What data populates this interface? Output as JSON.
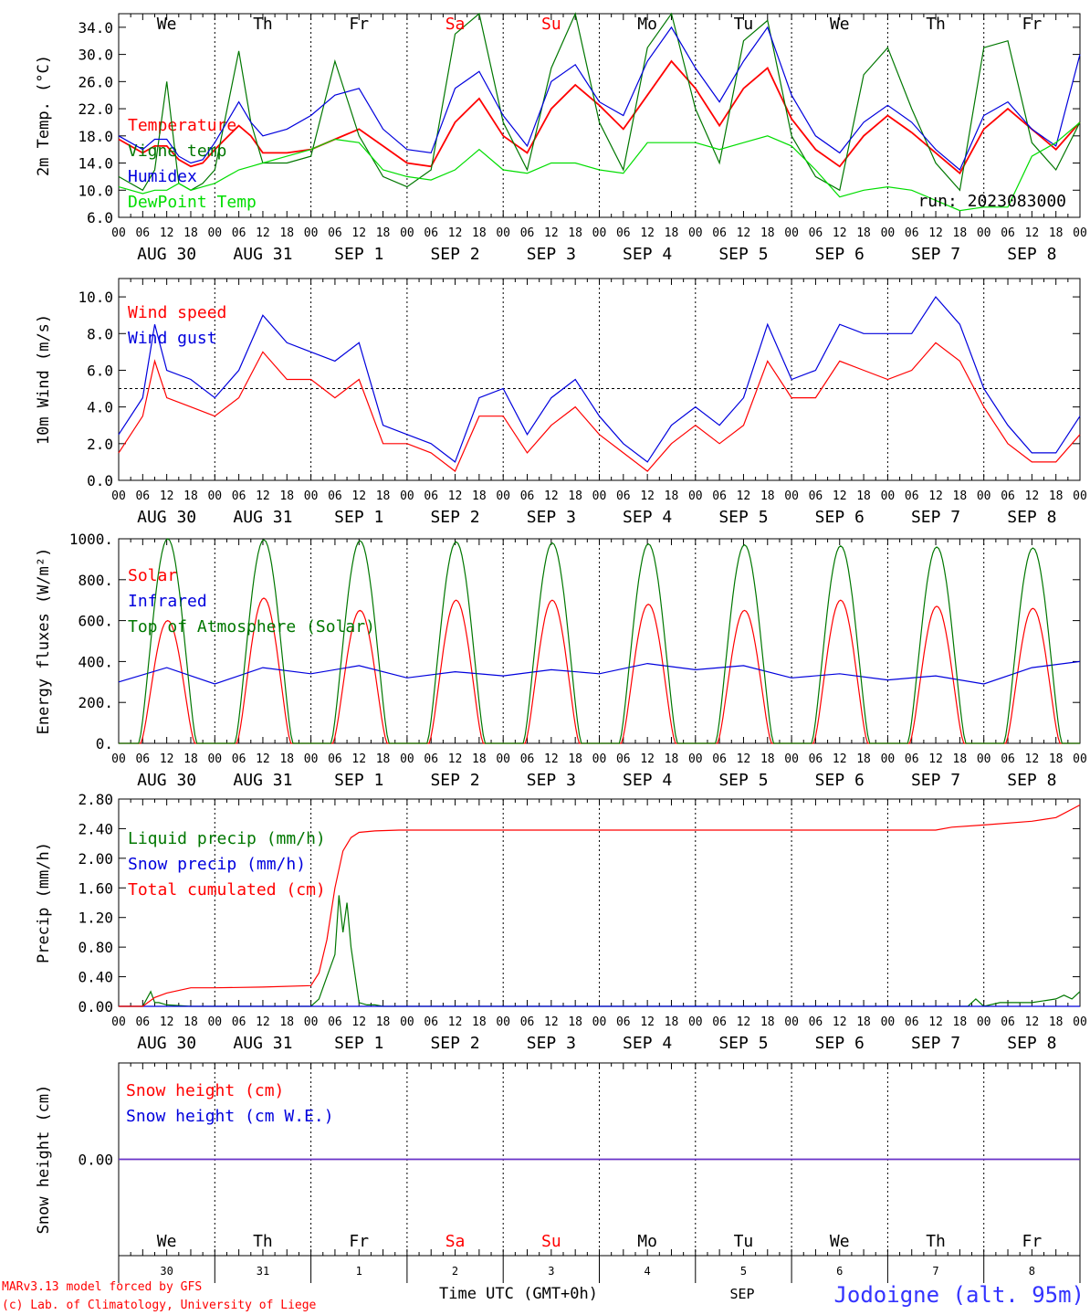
{
  "meta": {
    "run_label": "run: 2023083000",
    "credit_line1": "MARv3.13 model forced by GFS",
    "credit_line2": "(c) Lab. of Climatology, University of Liege",
    "station": "Jodoigne (alt. 95m)",
    "time_axis_label": "Time UTC (GMT+0h)",
    "month_label": "SEP",
    "colors": {
      "temperature": "#ff0000",
      "vigne": "#007700",
      "humidex": "#0000dd",
      "dewpoint": "#00dd00",
      "weekend_day": "#ff0000",
      "week_day": "#000000",
      "station": "#3333ff",
      "credit": "#ff0000",
      "snow_we": "#6633cc"
    }
  },
  "time_axis": {
    "hour_ticks": [
      "00",
      "06",
      "12",
      "18"
    ],
    "date_labels": [
      "AUG 30",
      "AUG 31",
      "SEP 1",
      "SEP 2",
      "SEP 3",
      "SEP 4",
      "SEP 5",
      "SEP 6",
      "SEP 7",
      "SEP 8"
    ],
    "weekdays": [
      "We",
      "Th",
      "Fr",
      "Sa",
      "Su",
      "Mo",
      "Tu",
      "We",
      "Th",
      "Fr"
    ],
    "weekend_flags": [
      false,
      false,
      false,
      true,
      true,
      false,
      false,
      false,
      false,
      false
    ],
    "day_numbers": [
      "30",
      "31",
      "1",
      "2",
      "3",
      "4",
      "5",
      "6",
      "7",
      "8"
    ],
    "range_hours": [
      0,
      240
    ]
  },
  "chart_data": [
    {
      "type": "line",
      "ylabel": "2m Temp. (°C)",
      "ylim": [
        6,
        36
      ],
      "yticks": [
        "6.0",
        "10.0",
        "14.0",
        "18.0",
        "22.0",
        "26.0",
        "30.0",
        "34.0"
      ],
      "ytick_values": [
        6,
        10,
        14,
        18,
        22,
        26,
        30,
        34
      ],
      "hline": null,
      "x_unit": "hours since 2023-08-30 00 UTC",
      "series": [
        {
          "name": "Temperature",
          "color": "#ff0000",
          "x": [
            0,
            6,
            9,
            12,
            15,
            18,
            21,
            24,
            30,
            33,
            36,
            42,
            48,
            54,
            60,
            66,
            72,
            78,
            84,
            90,
            96,
            102,
            108,
            114,
            120,
            126,
            132,
            138,
            144,
            150,
            156,
            162,
            168,
            174,
            180,
            186,
            192,
            198,
            204,
            210,
            216,
            222,
            228,
            234,
            240
          ],
          "y": [
            17.5,
            15.5,
            16.5,
            16.5,
            14.5,
            13.5,
            14,
            16,
            19.5,
            18,
            15.5,
            15.5,
            16,
            17.5,
            19,
            16.5,
            14,
            13.5,
            20,
            23.5,
            18,
            15.5,
            22,
            25.5,
            22.5,
            19,
            24,
            29,
            25,
            19.5,
            25,
            28,
            20.5,
            16,
            13.5,
            18,
            21,
            18.5,
            15.5,
            12.5,
            19,
            22,
            19,
            16,
            20
          ]
        },
        {
          "name": "Vigne temp",
          "color": "#007700",
          "x": [
            0,
            6,
            9,
            12,
            15,
            18,
            21,
            24,
            30,
            33,
            36,
            42,
            48,
            54,
            60,
            66,
            72,
            78,
            84,
            90,
            96,
            102,
            108,
            114,
            120,
            126,
            132,
            138,
            144,
            150,
            156,
            162,
            168,
            174,
            180,
            186,
            192,
            198,
            204,
            210,
            216,
            222,
            228,
            234,
            240
          ],
          "y": [
            12,
            10,
            13,
            26,
            11,
            10,
            11,
            13,
            30.5,
            20,
            14,
            14,
            15,
            29,
            18,
            12,
            10.5,
            13,
            33,
            36,
            20,
            13,
            28,
            36,
            20,
            13,
            31,
            36,
            22,
            14,
            32,
            35,
            18,
            12,
            10,
            27,
            31,
            22,
            14,
            10,
            31,
            32,
            17,
            13,
            20
          ]
        },
        {
          "name": "Humidex",
          "color": "#0000dd",
          "x": [
            0,
            6,
            9,
            12,
            15,
            18,
            21,
            24,
            30,
            33,
            36,
            42,
            48,
            54,
            60,
            66,
            72,
            78,
            84,
            90,
            96,
            102,
            108,
            114,
            120,
            126,
            132,
            138,
            144,
            150,
            156,
            162,
            168,
            174,
            180,
            186,
            192,
            198,
            204,
            210,
            216,
            222,
            228,
            234,
            240
          ],
          "y": [
            18,
            16,
            17.5,
            17.5,
            15,
            14,
            14.5,
            17,
            23,
            20,
            18,
            19,
            21,
            24,
            25,
            19,
            16,
            15.5,
            25,
            27.5,
            21,
            16.5,
            26,
            28.5,
            23,
            21,
            29,
            34,
            28,
            23,
            29,
            34,
            24,
            18,
            15.5,
            20,
            22.5,
            20,
            16,
            13,
            21,
            23,
            19,
            16.5,
            30
          ]
        },
        {
          "name": "DewPoint Temp",
          "color": "#00dd00",
          "x": [
            0,
            6,
            9,
            12,
            15,
            18,
            21,
            24,
            30,
            33,
            36,
            42,
            48,
            54,
            60,
            66,
            72,
            78,
            84,
            90,
            96,
            102,
            108,
            114,
            120,
            126,
            132,
            138,
            144,
            150,
            156,
            162,
            168,
            174,
            180,
            186,
            192,
            198,
            204,
            210,
            216,
            222,
            228,
            234,
            240
          ],
          "y": [
            10.5,
            9.5,
            10,
            10,
            11,
            10,
            10.5,
            11,
            13,
            13.5,
            14,
            15,
            16,
            17.5,
            17,
            13,
            12,
            11.5,
            13,
            16,
            13,
            12.5,
            14,
            14,
            13,
            12.5,
            17,
            17,
            17,
            16,
            17,
            18,
            16.5,
            13,
            9,
            10,
            10.5,
            10,
            8.5,
            7,
            7.5,
            7.5,
            15,
            17,
            20
          ]
        }
      ]
    },
    {
      "type": "line",
      "ylabel": "10m Wind (m/s)",
      "ylim": [
        0,
        11
      ],
      "yticks": [
        "0.0",
        "2.0",
        "4.0",
        "6.0",
        "8.0",
        "10.0"
      ],
      "ytick_values": [
        0,
        2,
        4,
        6,
        8,
        10
      ],
      "hline": 5,
      "x_unit": "hours since 2023-08-30 00 UTC",
      "series": [
        {
          "name": "Wind speed",
          "color": "#ff0000",
          "x": [
            0,
            6,
            9,
            12,
            18,
            24,
            30,
            36,
            42,
            48,
            54,
            60,
            66,
            72,
            78,
            84,
            90,
            96,
            102,
            108,
            114,
            120,
            126,
            132,
            138,
            144,
            150,
            156,
            162,
            168,
            174,
            180,
            186,
            192,
            198,
            204,
            210,
            216,
            222,
            228,
            234,
            240
          ],
          "y": [
            1.5,
            3.5,
            6.5,
            4.5,
            4,
            3.5,
            4.5,
            7,
            5.5,
            5.5,
            4.5,
            5.5,
            2,
            2,
            1.5,
            0.5,
            3.5,
            3.5,
            1.5,
            3,
            4,
            2.5,
            1.5,
            0.5,
            2,
            3,
            2,
            3,
            6.5,
            4.5,
            4.5,
            6.5,
            6,
            5.5,
            6,
            7.5,
            6.5,
            4,
            2,
            1,
            1,
            2.5
          ]
        },
        {
          "name": "Wind gust",
          "color": "#0000dd",
          "x": [
            0,
            6,
            9,
            12,
            18,
            24,
            30,
            36,
            42,
            48,
            54,
            60,
            66,
            72,
            78,
            84,
            90,
            96,
            102,
            108,
            114,
            120,
            126,
            132,
            138,
            144,
            150,
            156,
            162,
            168,
            174,
            180,
            186,
            192,
            198,
            204,
            210,
            216,
            222,
            228,
            234,
            240
          ],
          "y": [
            2.5,
            4.5,
            8.5,
            6,
            5.5,
            4.5,
            6,
            9,
            7.5,
            7,
            6.5,
            7.5,
            3,
            2.5,
            2,
            1,
            4.5,
            5,
            2.5,
            4.5,
            5.5,
            3.5,
            2,
            1,
            3,
            4,
            3,
            4.5,
            8.5,
            5.5,
            6,
            8.5,
            8,
            8,
            8,
            10,
            8.5,
            5,
            3,
            1.5,
            1.5,
            3.5
          ]
        }
      ]
    },
    {
      "type": "line",
      "ylabel": "Energy fluxes (W/m²)",
      "ylim": [
        0,
        1000
      ],
      "yticks": [
        "0.",
        "200.",
        "400.",
        "600.",
        "800.",
        "1000."
      ],
      "ytick_values": [
        0,
        200,
        400,
        600,
        800,
        1000
      ],
      "hline": null,
      "x_unit": "hours since 2023-08-30 00 UTC",
      "series": [
        {
          "name": "Solar",
          "color": "#ff0000",
          "diurnal": true,
          "sunrise": 5.5,
          "sunset": 19,
          "day_peaks": [
            600,
            710,
            650,
            700,
            700,
            680,
            650,
            700,
            670,
            660
          ]
        },
        {
          "name": "Infrared",
          "color": "#0000dd",
          "x": [
            0,
            12,
            24,
            36,
            48,
            60,
            72,
            84,
            96,
            108,
            120,
            132,
            144,
            156,
            168,
            180,
            192,
            204,
            216,
            228,
            240
          ],
          "y": [
            300,
            370,
            290,
            370,
            340,
            380,
            320,
            350,
            330,
            360,
            340,
            390,
            360,
            380,
            320,
            340,
            310,
            330,
            290,
            370,
            400
          ]
        },
        {
          "name": "Top of Atmosphere (Solar)",
          "color": "#007700",
          "diurnal": true,
          "sunrise": 5,
          "sunset": 19.5,
          "day_peaks": [
            1000,
            995,
            990,
            985,
            980,
            975,
            970,
            965,
            960,
            955
          ]
        }
      ]
    },
    {
      "type": "line",
      "ylabel": "Precip (mm/h)",
      "ylim": [
        0,
        2.8
      ],
      "yticks": [
        "0.00",
        "0.40",
        "0.80",
        "1.20",
        "1.60",
        "2.00",
        "2.40",
        "2.80"
      ],
      "ytick_values": [
        0,
        0.4,
        0.8,
        1.2,
        1.6,
        2.0,
        2.4,
        2.8
      ],
      "hline": null,
      "x_unit": "hours since 2023-08-30 00 UTC",
      "series": [
        {
          "name": "Liquid precip (mm/h)",
          "color": "#007700",
          "x": [
            0,
            6,
            8,
            9,
            10,
            12,
            18,
            30,
            48,
            50,
            52,
            54,
            55,
            56,
            57,
            58,
            60,
            62,
            64,
            66,
            72,
            120,
            204,
            212,
            214,
            216,
            220,
            228,
            234,
            236,
            238,
            240
          ],
          "y": [
            0,
            0,
            0.2,
            0.05,
            0.05,
            0.02,
            0,
            0,
            0,
            0.1,
            0.4,
            0.7,
            1.5,
            1.0,
            1.4,
            0.8,
            0.05,
            0.02,
            0.02,
            0,
            0,
            0,
            0,
            0,
            0.1,
            0,
            0.05,
            0.05,
            0.1,
            0.15,
            0.1,
            0.2
          ]
        },
        {
          "name": "Snow precip (mm/h)",
          "color": "#0000dd",
          "x": [
            0,
            240
          ],
          "y": [
            0,
            0
          ]
        },
        {
          "name": "Total cumulated (cm)",
          "color": "#ff0000",
          "x": [
            0,
            6,
            9,
            12,
            18,
            24,
            36,
            48,
            50,
            52,
            54,
            56,
            58,
            60,
            64,
            70,
            72,
            204,
            208,
            216,
            228,
            234,
            240
          ],
          "y": [
            0,
            0,
            0.12,
            0.18,
            0.25,
            0.25,
            0.26,
            0.28,
            0.45,
            0.9,
            1.6,
            2.1,
            2.28,
            2.35,
            2.37,
            2.38,
            2.38,
            2.38,
            2.42,
            2.45,
            2.5,
            2.55,
            2.72
          ]
        }
      ]
    },
    {
      "type": "line",
      "ylabel": "Snow height (cm)",
      "ylim": [
        -1,
        1
      ],
      "yticks": [
        "0.00"
      ],
      "ytick_values": [
        0
      ],
      "hline": null,
      "x_unit": "hours since 2023-08-30 00 UTC",
      "series": [
        {
          "name": "Snow height (cm)",
          "color": "#ff0000",
          "x": [
            0,
            240
          ],
          "y": [
            0,
            0
          ]
        },
        {
          "name": "Snow height (cm W.E.)",
          "color": "#0000dd",
          "x": [
            0,
            240
          ],
          "y": [
            0,
            0
          ]
        }
      ]
    }
  ]
}
